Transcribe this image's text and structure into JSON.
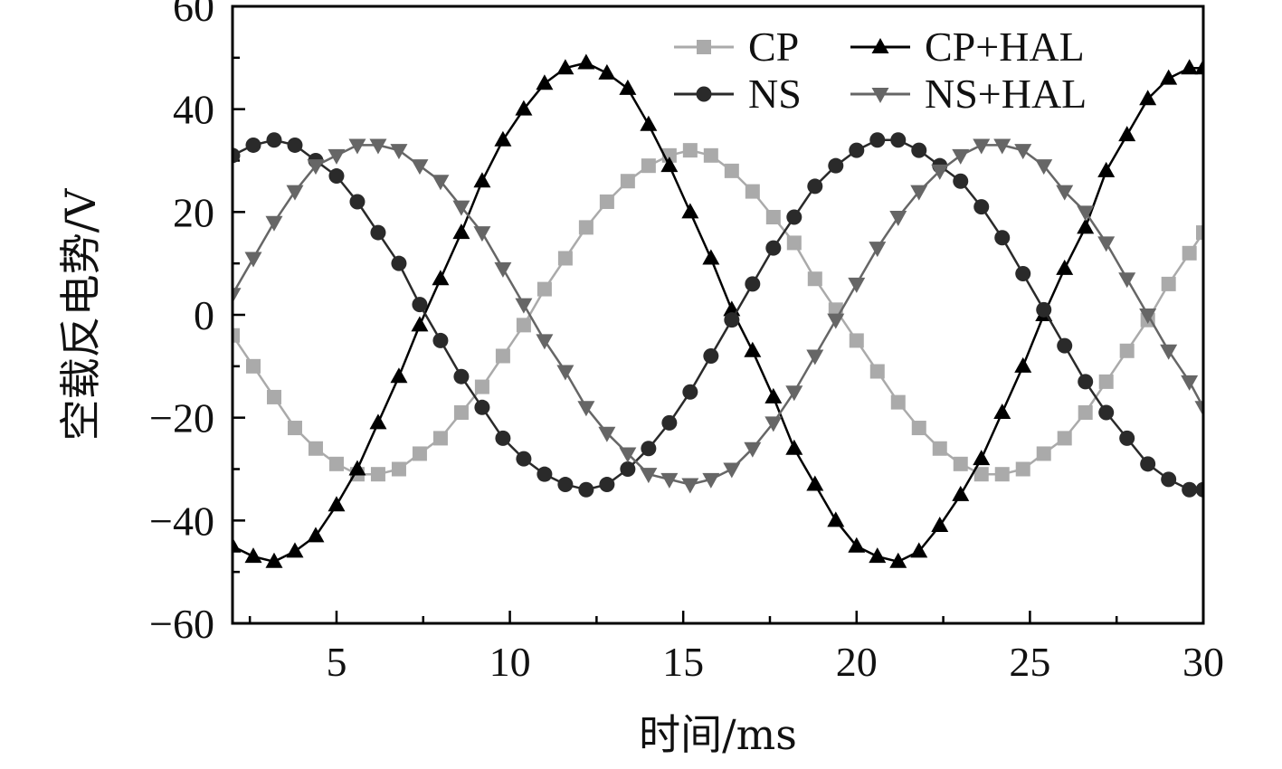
{
  "chart_data": {
    "type": "line",
    "title": "",
    "xlabel": "时间/ms",
    "ylabel": "空载反电势/V",
    "xlim": [
      2,
      30
    ],
    "ylim": [
      -60,
      60
    ],
    "xticks": [
      5,
      10,
      15,
      20,
      25,
      30
    ],
    "xtick_labels": [
      "5",
      "10",
      "15",
      "20",
      "25",
      "30"
    ],
    "yticks": [
      -60,
      -40,
      -20,
      0,
      20,
      40,
      60
    ],
    "ytick_labels": [
      "−60",
      "−40",
      "−20",
      "0",
      "20",
      "40",
      "60"
    ],
    "grid": false,
    "legend_position": "top-right",
    "series": [
      {
        "name": "CP",
        "color": "#aaaaaa",
        "marker": "square",
        "x": [
          2.0,
          2.6,
          3.2,
          3.8,
          4.4,
          5.0,
          5.6,
          6.2,
          6.8,
          7.4,
          8.0,
          8.6,
          9.2,
          9.8,
          10.4,
          11.0,
          11.6,
          12.2,
          12.8,
          13.4,
          14.0,
          14.6,
          15.2,
          15.8,
          16.4,
          17.0,
          17.6,
          18.2,
          18.8,
          19.4,
          20.0,
          20.6,
          21.2,
          21.8,
          22.4,
          23.0,
          23.6,
          24.2,
          24.8,
          25.4,
          26.0,
          26.6,
          27.2,
          27.8,
          28.4,
          29.0,
          29.6,
          30.0
        ],
        "y": [
          -4,
          -10,
          -16,
          -22,
          -26,
          -29,
          -31,
          -31,
          -30,
          -27,
          -24,
          -19,
          -14,
          -8,
          -2,
          5,
          11,
          17,
          22,
          26,
          29,
          31,
          32,
          31,
          28,
          24,
          19,
          14,
          7,
          1,
          -5,
          -11,
          -17,
          -22,
          -26,
          -29,
          -31,
          -31,
          -30,
          -27,
          -24,
          -19,
          -13,
          -7,
          -1,
          6,
          12,
          16
        ]
      },
      {
        "name": "CP+HAL",
        "color": "#000000",
        "marker": "triangle-up",
        "x": [
          2.0,
          2.6,
          3.2,
          3.8,
          4.4,
          5.0,
          5.6,
          6.2,
          6.8,
          7.4,
          8.0,
          8.6,
          9.2,
          9.8,
          10.4,
          11.0,
          11.6,
          12.2,
          12.8,
          13.4,
          14.0,
          14.6,
          15.2,
          15.8,
          16.4,
          17.0,
          17.6,
          18.2,
          18.8,
          19.4,
          20.0,
          20.6,
          21.2,
          21.8,
          22.4,
          23.0,
          23.6,
          24.2,
          24.8,
          25.4,
          26.0,
          26.6,
          27.2,
          27.8,
          28.4,
          29.0,
          29.6,
          30.0
        ],
        "y": [
          -45,
          -47,
          -48,
          -46,
          -43,
          -37,
          -30,
          -21,
          -12,
          -2,
          7,
          16,
          26,
          34,
          40,
          45,
          48,
          49,
          47,
          44,
          37,
          29,
          20,
          11,
          1,
          -7,
          -16,
          -26,
          -33,
          -40,
          -45,
          -47,
          -48,
          -46,
          -41,
          -35,
          -28,
          -19,
          -10,
          0,
          9,
          17,
          28,
          35,
          42,
          46,
          48,
          48
        ]
      },
      {
        "name": "NS",
        "color": "#2a2a2a",
        "marker": "circle",
        "x": [
          2.0,
          2.6,
          3.2,
          3.8,
          4.4,
          5.0,
          5.6,
          6.2,
          6.8,
          7.4,
          8.0,
          8.6,
          9.2,
          9.8,
          10.4,
          11.0,
          11.6,
          12.2,
          12.8,
          13.4,
          14.0,
          14.6,
          15.2,
          15.8,
          16.4,
          17.0,
          17.6,
          18.2,
          18.8,
          19.4,
          20.0,
          20.6,
          21.2,
          21.8,
          22.4,
          23.0,
          23.6,
          24.2,
          24.8,
          25.4,
          26.0,
          26.6,
          27.2,
          27.8,
          28.4,
          29.0,
          29.6,
          30.0
        ],
        "y": [
          31,
          33,
          34,
          33,
          30,
          27,
          22,
          16,
          10,
          2,
          -5,
          -12,
          -18,
          -24,
          -28,
          -31,
          -33,
          -34,
          -33,
          -30,
          -26,
          -21,
          -15,
          -8,
          -1,
          6,
          13,
          19,
          25,
          29,
          32,
          34,
          34,
          32,
          29,
          26,
          21,
          15,
          8,
          1,
          -6,
          -13,
          -19,
          -24,
          -29,
          -32,
          -34,
          -34
        ]
      },
      {
        "name": "NS+HAL",
        "color": "#666666",
        "marker": "triangle-down",
        "x": [
          2.0,
          2.6,
          3.2,
          3.8,
          4.4,
          5.0,
          5.6,
          6.2,
          6.8,
          7.4,
          8.0,
          8.6,
          9.2,
          9.8,
          10.4,
          11.0,
          11.6,
          12.2,
          12.8,
          13.4,
          14.0,
          14.6,
          15.2,
          15.8,
          16.4,
          17.0,
          17.6,
          18.2,
          18.8,
          19.4,
          20.0,
          20.6,
          21.2,
          21.8,
          22.4,
          23.0,
          23.6,
          24.2,
          24.8,
          25.4,
          26.0,
          26.6,
          27.2,
          27.8,
          28.4,
          29.0,
          29.6,
          30.0
        ],
        "y": [
          4,
          11,
          18,
          24,
          29,
          31,
          33,
          33,
          32,
          29,
          26,
          21,
          16,
          9,
          2,
          -5,
          -11,
          -18,
          -23,
          -27,
          -31,
          -32,
          -33,
          -32,
          -30,
          -26,
          -21,
          -15,
          -8,
          -1,
          6,
          13,
          19,
          24,
          28,
          31,
          33,
          33,
          32,
          29,
          24,
          20,
          14,
          7,
          0,
          -7,
          -13,
          -18
        ]
      }
    ]
  }
}
